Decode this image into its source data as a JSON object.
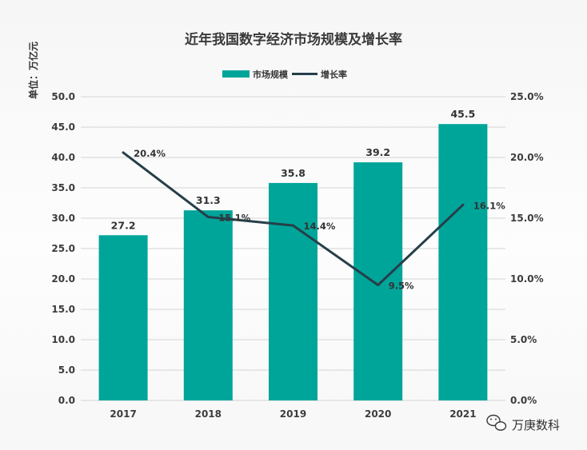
{
  "chart_data": {
    "type": "bar",
    "title": "近年我国数字经济市场规模及增长率",
    "unit_label": "单位：万亿元",
    "categories": [
      "2017",
      "2018",
      "2019",
      "2020",
      "2021"
    ],
    "series": [
      {
        "name": "市场规模",
        "type": "bar",
        "axis": "left",
        "values": [
          27.2,
          31.3,
          35.8,
          39.2,
          45.5
        ],
        "labels": [
          "27.2",
          "31.3",
          "35.8",
          "39.2",
          "45.5"
        ],
        "color": "#00a59a"
      },
      {
        "name": "增长率",
        "type": "line",
        "axis": "right",
        "values": [
          20.4,
          15.1,
          14.4,
          9.5,
          16.1
        ],
        "labels": [
          "20.4%",
          "15.1%",
          "14.4%",
          "9.5%",
          "16.1%"
        ],
        "color": "#263f4a"
      }
    ],
    "y_left": {
      "range": [
        0,
        50
      ],
      "ticks": [
        "0.0",
        "5.0",
        "10.0",
        "15.0",
        "20.0",
        "25.0",
        "30.0",
        "35.0",
        "40.0",
        "45.0",
        "50.0"
      ]
    },
    "y_right": {
      "range": [
        0,
        25
      ],
      "ticks": [
        "0.0%",
        "5.0%",
        "10.0%",
        "15.0%",
        "20.0%",
        "25.0%"
      ]
    },
    "grid": true,
    "legend_position": "top-center"
  },
  "watermark": {
    "text": "万庚数科",
    "icon": "wechat-icon"
  }
}
